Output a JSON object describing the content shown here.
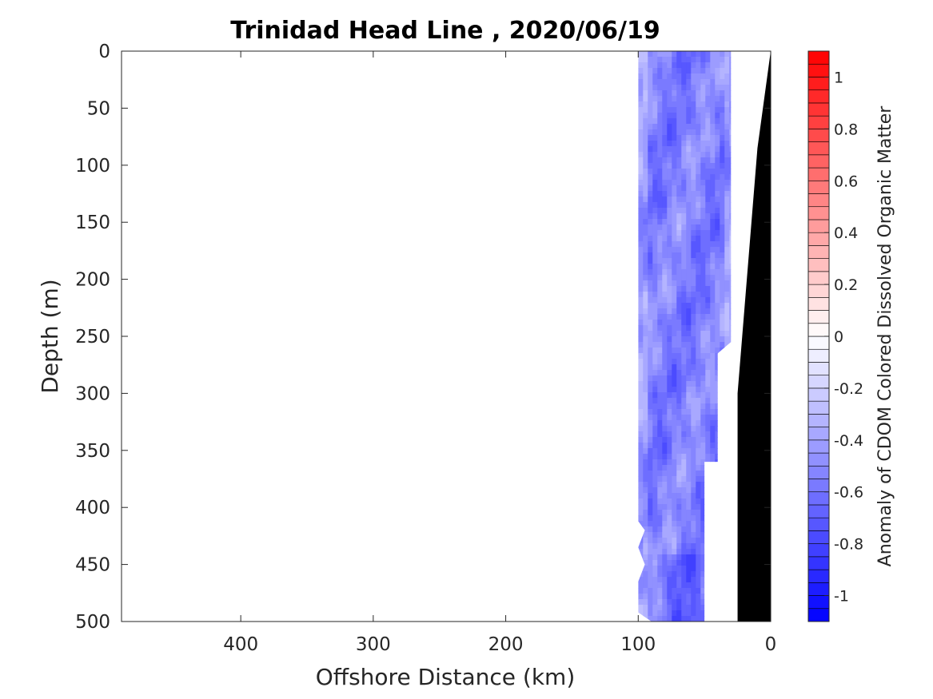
{
  "chart_data": {
    "type": "heatmap",
    "title": "Trinidad Head Line , 2020/06/19",
    "xlabel": "Offshore Distance (km)",
    "ylabel": "Depth (m)",
    "xlim": [
      490,
      0
    ],
    "ylim": [
      0,
      500
    ],
    "x_reversed": true,
    "y_reversed": true,
    "x_ticks": [
      "400",
      "300",
      "200",
      "100",
      "0"
    ],
    "x_tick_values": [
      400,
      300,
      200,
      100,
      0
    ],
    "y_ticks": [
      "0",
      "50",
      "100",
      "150",
      "200",
      "250",
      "300",
      "350",
      "400",
      "450",
      "500"
    ],
    "y_tick_values": [
      0,
      50,
      100,
      150,
      200,
      250,
      300,
      350,
      400,
      450,
      500
    ],
    "colorbar": {
      "label": "Anomaly of CDOM Colored Dissolved Organic Matter",
      "range": [
        -1.1,
        1.1
      ],
      "levels": 44,
      "ticks": [
        "-1",
        "-0.8",
        "-0.6",
        "-0.4",
        "-0.2",
        "0",
        "0.2",
        "0.4",
        "0.6",
        "0.8",
        "1"
      ],
      "tick_values": [
        -1,
        -0.8,
        -0.6,
        -0.4,
        -0.2,
        0,
        0.2,
        0.4,
        0.6,
        0.8,
        1
      ],
      "colormap": "blue-white-red",
      "low_color": "#0000ff",
      "mid_color": "#ffffff",
      "high_color": "#ff0000"
    },
    "data_region": {
      "x_range_km": [
        100,
        30
      ],
      "depth_range_m": [
        0,
        500
      ],
      "typical_value": -0.55,
      "min_value": -0.85,
      "max_value": -0.3
    },
    "data_outline_km_m": [
      [
        100,
        0
      ],
      [
        30,
        0
      ],
      [
        30,
        255
      ],
      [
        40,
        265
      ],
      [
        40,
        360
      ],
      [
        50,
        360
      ],
      [
        50,
        500
      ],
      [
        90,
        500
      ],
      [
        100,
        492
      ],
      [
        100,
        465
      ],
      [
        95,
        450
      ],
      [
        100,
        435
      ],
      [
        95,
        420
      ],
      [
        100,
        412
      ]
    ],
    "bathymetry_outline_km_m": [
      [
        0,
        0
      ],
      [
        10,
        85
      ],
      [
        25,
        300
      ],
      [
        25,
        500
      ],
      [
        0,
        500
      ]
    ],
    "bathymetry_color": "#000000"
  }
}
